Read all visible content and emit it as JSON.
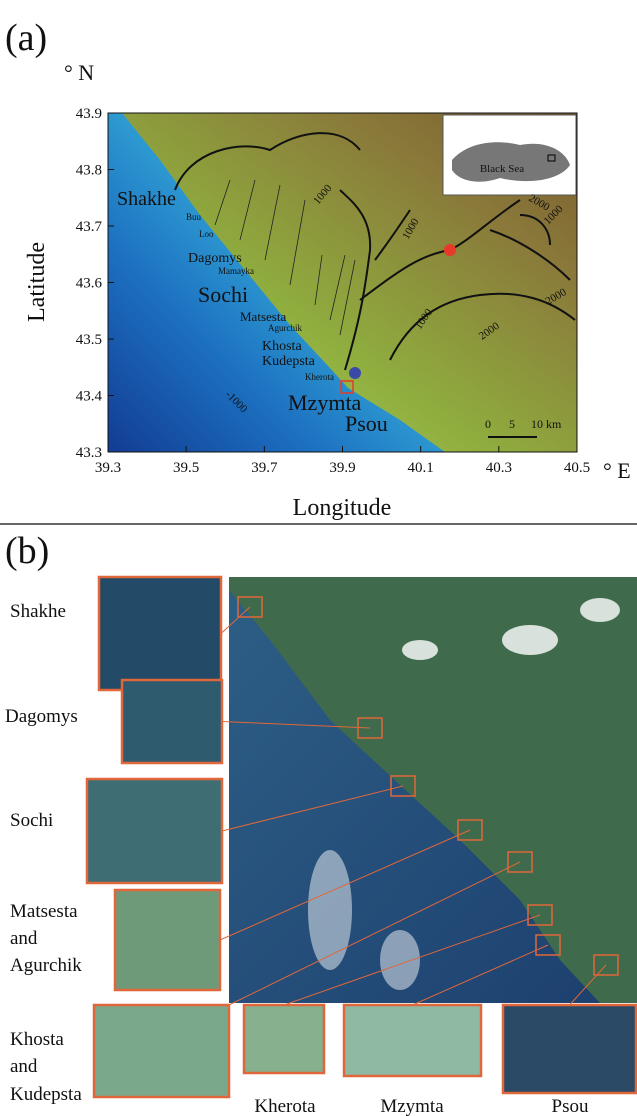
{
  "panel_a": {
    "label": "(a)",
    "north_unit": "° N",
    "east_unit": "° E",
    "y_axis_title": "Latitude",
    "x_axis_title": "Longitude",
    "xlim": [
      39.3,
      40.5
    ],
    "ylim": [
      43.3,
      43.9
    ],
    "xticks": [
      39.3,
      39.5,
      39.7,
      39.9,
      40.1,
      40.3,
      40.5
    ],
    "yticks": [
      43.3,
      43.4,
      43.5,
      43.6,
      43.7,
      43.8,
      43.9
    ],
    "places": [
      "Shakhe",
      "Buu",
      "Loo",
      "Dagomys",
      "Mamayka",
      "Sochi",
      "Matsesta",
      "Agurchik",
      "Khosta",
      "Kudepsta",
      "Kherota",
      "Mzymta",
      "Psou"
    ],
    "contours": [
      "1000",
      "1000",
      "1000",
      "1000",
      "2000",
      "2000",
      "2000",
      "-1000"
    ],
    "inset_label": "Black Sea",
    "scale_bar": [
      "0",
      "5",
      "10 km"
    ]
  },
  "panel_b": {
    "label": "(b)",
    "side_labels": [
      [
        "Shakhe"
      ],
      [
        "Dagomys"
      ],
      [
        "Sochi"
      ],
      [
        "Matsesta",
        "and",
        "Agurchik"
      ],
      [
        "Khosta",
        "and",
        "Kudepsta"
      ]
    ],
    "bottom_labels": [
      "Kherota",
      "Mzymta",
      "Psou"
    ]
  }
}
